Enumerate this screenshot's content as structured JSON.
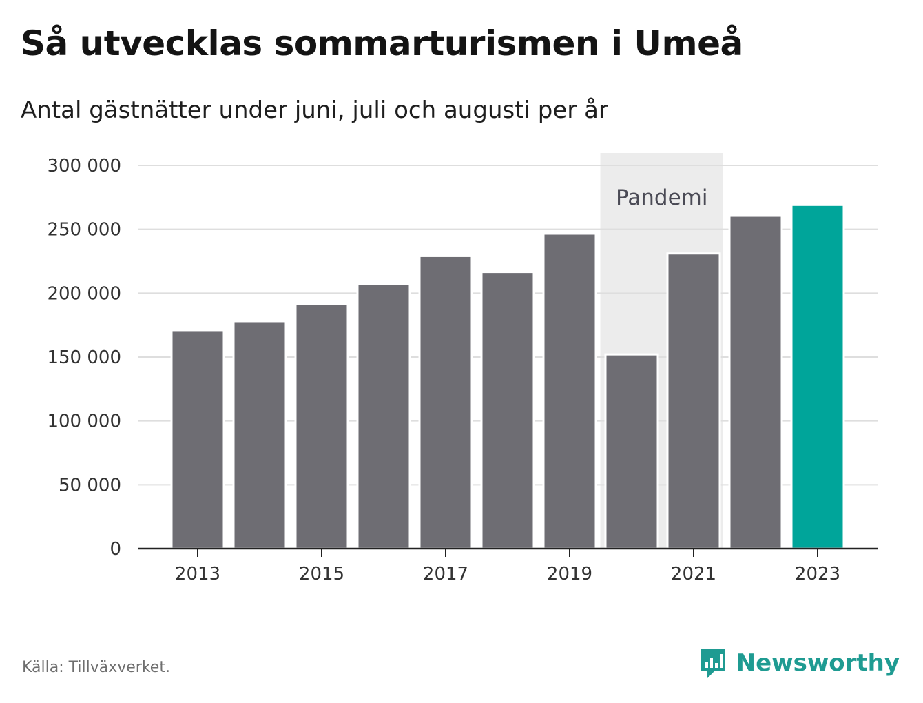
{
  "title": "Så utvecklas sommarturismen i Umeå",
  "subtitle": "Antal gästnätter under juni, juli och augusti per år",
  "source": "Källa: Tillväxverket.",
  "brand": "Newsworthy",
  "colors": {
    "bar": "#6e6d73",
    "highlight": "#00a59a",
    "shade": "#ececec",
    "grid": "#dedede",
    "axis": "#222222",
    "brand": "#1f9b92"
  },
  "chart_data": {
    "type": "bar",
    "categories": [
      "2013",
      "2014",
      "2015",
      "2016",
      "2017",
      "2018",
      "2019",
      "2020",
      "2021",
      "2022",
      "2023"
    ],
    "values": [
      170000,
      177000,
      190500,
      206000,
      228000,
      215500,
      245500,
      151000,
      230000,
      259500,
      268000
    ],
    "highlight_index": 10,
    "xtick_labels": [
      "2013",
      "2015",
      "2017",
      "2019",
      "2021",
      "2023"
    ],
    "ylim": [
      0,
      300000
    ],
    "yticks": [
      0,
      50000,
      100000,
      150000,
      200000,
      250000,
      300000
    ],
    "ytick_labels": [
      "0",
      "50 000",
      "100 000",
      "150 000",
      "200 000",
      "250 000",
      "300 000"
    ],
    "annotation": {
      "label": "Pandemi",
      "from": "2020",
      "to": "2021"
    },
    "grid": true,
    "legend": "none"
  }
}
